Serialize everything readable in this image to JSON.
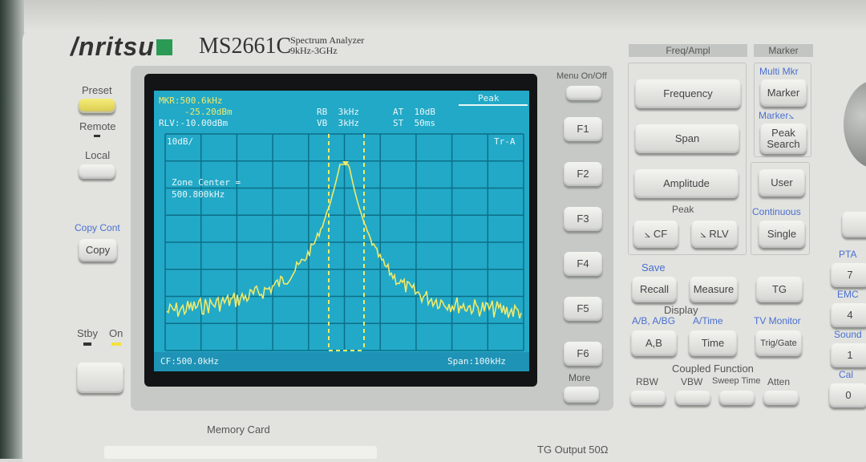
{
  "brand": {
    "logo": "Anritsu",
    "model": "MS2661C",
    "subtitle_1": "Spectrum Analyzer",
    "subtitle_2": "9kHz-3GHz"
  },
  "left_panel": {
    "preset": "Preset",
    "remote": "Remote",
    "local": "Local",
    "copy_cont": "Copy Cont",
    "copy": "Copy",
    "stby": "Stby",
    "on": "On",
    "memory_card": "Memory Card"
  },
  "screen": {
    "marker_freq": "MKR:500.6kHz",
    "marker_level": "-25.20dBm",
    "ref_level": "RLV:-10.00dBm",
    "rbw": "RB  3kHz",
    "vbw": "VB  3kHz",
    "atten": "AT  10dB",
    "sweep": "ST  50ms",
    "mode": "Peak",
    "scale": "10dB/",
    "trace": "Tr-A",
    "zone_1": "Zone Center =",
    "zone_2": "500.800kHz",
    "center_freq": "CF:500.0kHz",
    "span": "Span:100kHz",
    "trace_color": "#f0ea6a",
    "background_color": "#22a9c7"
  },
  "softkeys": {
    "menu": "Menu On/Off",
    "keys": [
      "F1",
      "F2",
      "F3",
      "F4",
      "F5",
      "F6"
    ],
    "more": "More"
  },
  "freq_ampl": {
    "header": "Freq/Ampl",
    "frequency": "Frequency",
    "span": "Span",
    "amplitude": "Amplitude",
    "peak": "Peak",
    "to_cf": "⦣ CF",
    "to_rlv": "⦣ RLV"
  },
  "marker": {
    "header": "Marker",
    "multi_mkr": "Multi Mkr",
    "marker": "Marker",
    "marker_to": "Marker⦣",
    "peak_search": "Peak Search",
    "user": "User",
    "continuous": "Continuous",
    "single": "Single"
  },
  "lower": {
    "save": "Save",
    "recall": "Recall",
    "measure": "Measure",
    "tg": "TG",
    "display": "Display",
    "ab_abg": "A/B, A/BG",
    "a_time": "A/Time",
    "tv_monitor": "TV Monitor",
    "ab": "A,B",
    "time": "Time",
    "trig_gate": "Trig/Gate",
    "coupled": "Coupled Function",
    "rbw": "RBW",
    "vbw": "VBW",
    "sweep_time": "Sweep Time",
    "atten": "Atten"
  },
  "keypad": {
    "pta": "PTA",
    "k7": "7",
    "emc": "EMC",
    "k4": "4",
    "sound": "Sound",
    "k1": "1",
    "cal": "Cal",
    "k0": "0"
  },
  "tg_output": "TG Output 50Ω"
}
